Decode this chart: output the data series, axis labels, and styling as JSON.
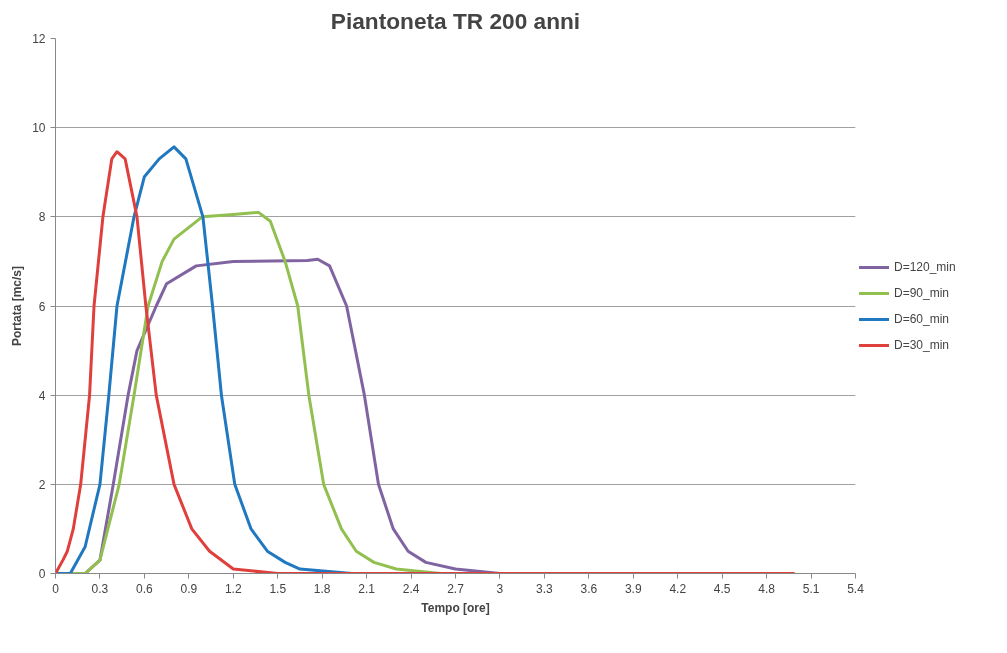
{
  "chart_data": {
    "type": "line",
    "title": "Piantoneta TR 200 anni",
    "xlabel": "Tempo [ore]",
    "ylabel": "Portata [mc/s]",
    "xlim": [
      0,
      5.4
    ],
    "xticks": [
      0,
      0.3,
      0.6,
      0.9,
      1.2,
      1.5,
      1.8,
      2.1,
      2.4,
      2.7,
      3,
      3.3,
      3.6,
      3.9,
      4.2,
      4.5,
      4.8,
      5.1,
      5.4
    ],
    "ylim": [
      0,
      12
    ],
    "yticks": [
      0,
      2,
      4,
      6,
      8,
      10,
      12
    ],
    "grid": "y",
    "legend": "right",
    "marker": "none",
    "line_style": "solid",
    "series": [
      {
        "name": "D=120_min",
        "color": "#8064a2",
        "x": [
          0,
          0.2,
          0.3,
          0.39,
          0.49,
          0.55,
          0.68,
          0.75,
          0.95,
          1.2,
          1.7,
          1.77,
          1.85,
          1.965,
          2.085,
          2.18,
          2.28,
          2.38,
          2.5,
          2.7,
          3.0,
          4.98
        ],
        "values": [
          0,
          0,
          0.3,
          2,
          4,
          5,
          6,
          6.5,
          6.9,
          7.0,
          7.02,
          7.05,
          6.9,
          6,
          4,
          2,
          1,
          0.5,
          0.25,
          0.1,
          0,
          0
        ]
      },
      {
        "name": "D=90_min",
        "color": "#92c050",
        "x": [
          0,
          0.2,
          0.3,
          0.43,
          0.53,
          0.625,
          0.72,
          0.8,
          0.99,
          1.2,
          1.37,
          1.45,
          1.55,
          1.635,
          1.71,
          1.81,
          1.93,
          2.03,
          2.15,
          2.3,
          2.6,
          4.98
        ],
        "values": [
          0,
          0,
          0.3,
          2,
          4,
          6,
          7,
          7.5,
          8,
          8.05,
          8.1,
          7.9,
          7,
          6,
          4,
          2,
          1,
          0.5,
          0.25,
          0.1,
          0,
          0
        ]
      },
      {
        "name": "D=60_min",
        "color": "#1f78c0",
        "x": [
          0,
          0.1,
          0.2,
          0.3,
          0.36,
          0.415,
          0.53,
          0.6,
          0.7,
          0.8,
          0.88,
          0.995,
          1.06,
          1.12,
          1.21,
          1.32,
          1.43,
          1.55,
          1.65,
          2.0,
          4.98
        ],
        "values": [
          0,
          0,
          0.6,
          2,
          4,
          6,
          8,
          8.9,
          9.3,
          9.57,
          9.3,
          8,
          6,
          4,
          2,
          1,
          0.5,
          0.25,
          0.1,
          0,
          0
        ]
      },
      {
        "name": "D=30_min",
        "color": "#e0403c",
        "x": [
          0,
          0.05,
          0.08,
          0.12,
          0.17,
          0.23,
          0.26,
          0.32,
          0.38,
          0.415,
          0.47,
          0.55,
          0.61,
          0.68,
          0.8,
          0.92,
          1.04,
          1.2,
          1.5,
          4.98
        ],
        "values": [
          0,
          0.3,
          0.5,
          1,
          2,
          4,
          6,
          8,
          9.3,
          9.46,
          9.3,
          8,
          6,
          4,
          2,
          1,
          0.5,
          0.1,
          0,
          0
        ]
      }
    ]
  }
}
